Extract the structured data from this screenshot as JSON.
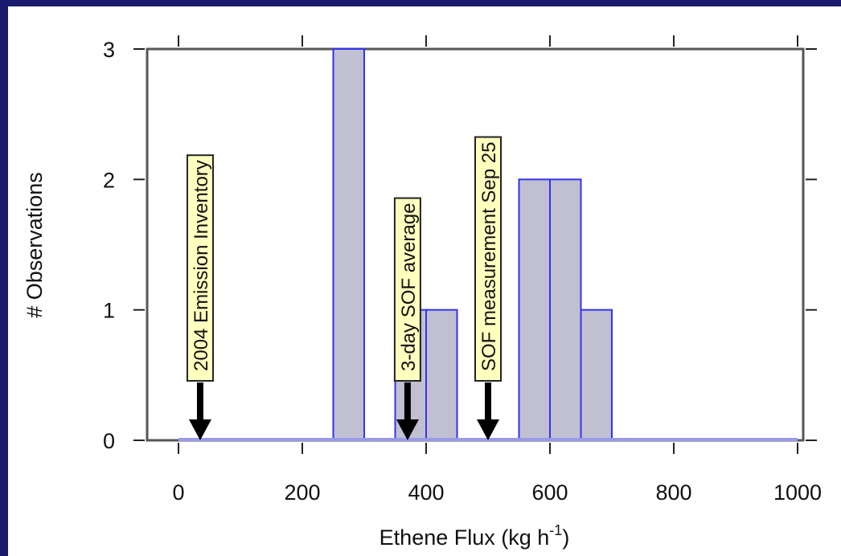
{
  "chart_data": {
    "type": "bar",
    "xlabel": "Ethene Flux (kg h",
    "xlabel_superscript": "-1",
    "xlabel_suffix": ")",
    "ylabel": "# Observations",
    "xlim": [
      -50,
      1000
    ],
    "ylim": [
      0,
      3
    ],
    "xticks": [
      0,
      200,
      400,
      600,
      800,
      1000
    ],
    "yticks": [
      0,
      1,
      2,
      3
    ],
    "bin_width": 50,
    "bins": [
      {
        "x0": 250,
        "x1": 300,
        "count": 3
      },
      {
        "x0": 350,
        "x1": 400,
        "count": 1
      },
      {
        "x0": 400,
        "x1": 450,
        "count": 1
      },
      {
        "x0": 550,
        "x1": 600,
        "count": 2
      },
      {
        "x0": 600,
        "x1": 650,
        "count": 2
      },
      {
        "x0": 650,
        "x1": 700,
        "count": 1
      }
    ],
    "annotations": [
      {
        "text": "2004 Emission Inventory",
        "x": 35
      },
      {
        "text": "3-day SOF average",
        "x": 370
      },
      {
        "text": "SOF measurement Sep 25",
        "x": 500
      }
    ],
    "colors": {
      "bar_fill": "#c0c0d0",
      "bar_edge": "#3333ee",
      "baseline": "#9999ee",
      "annotation_bg": "#ffffc0",
      "frame": "#1a1a6e"
    }
  }
}
